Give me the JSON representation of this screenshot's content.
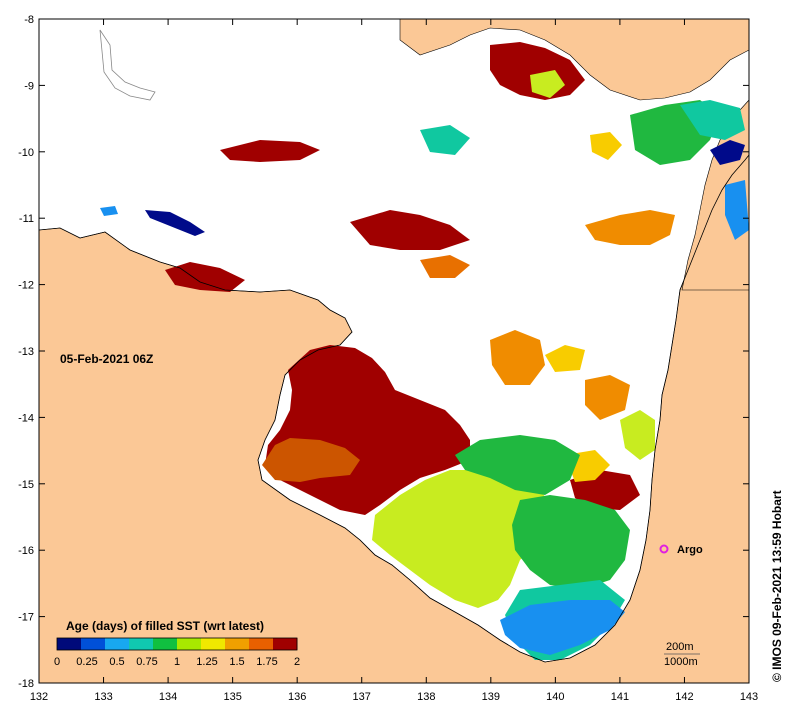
{
  "map": {
    "date_label": "05-Feb-2021 06Z",
    "credit": "© IMOS 09-Feb-2021 13:59 Hobart",
    "lon_ticks": [
      "132",
      "133",
      "134",
      "135",
      "136",
      "137",
      "138",
      "139",
      "140",
      "141",
      "142",
      "143"
    ],
    "lat_ticks": [
      "-8",
      "-9",
      "-10",
      "-11",
      "-12",
      "-13",
      "-14",
      "-15",
      "-16",
      "-17",
      "-18"
    ],
    "marker": {
      "label": "Argo",
      "color": "#e020e0"
    },
    "contour_labels": [
      "200m",
      "1000m"
    ],
    "colorbar": {
      "title": "Age (days) of filled SST (wrt latest)",
      "ticks": [
        "0",
        "0.25",
        "0.5",
        "0.75",
        "1",
        "1.25",
        "1.5",
        "1.75",
        "2"
      ],
      "colors": [
        "#000a7a",
        "#0050d8",
        "#18a8f0",
        "#10c8b0",
        "#10c040",
        "#a8e800",
        "#f0e800",
        "#f0a000",
        "#e86000",
        "#a00000"
      ]
    },
    "colors": {
      "land": "#fbc896",
      "ocean_nodata": "#ffffff",
      "coast": "#000000",
      "age_2": "#a00000",
      "age_1_75": "#cc5500",
      "age_1_5": "#f08c00",
      "age_1_25": "#f8cc00",
      "age_1": "#c8ec20",
      "age_0_75": "#20b840",
      "age_0_5": "#10c8a0",
      "age_0_25": "#1890f0",
      "age_0": "#000a8a"
    }
  }
}
